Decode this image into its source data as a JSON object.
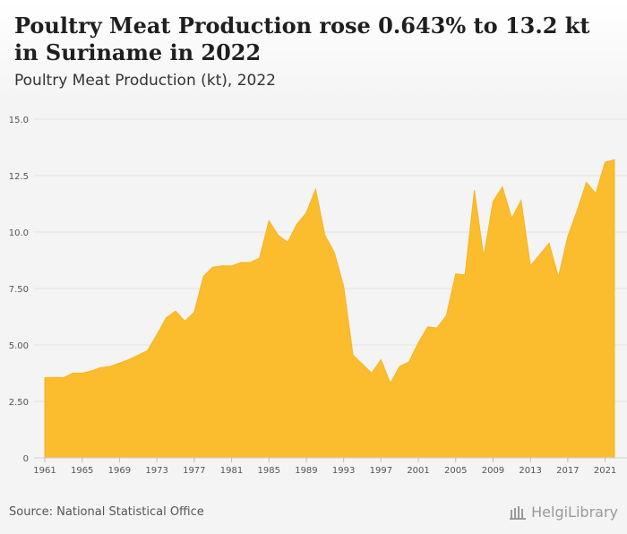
{
  "header": {
    "title": "Poultry Meat Production rose 0.643% to 13.2 kt in Suriname in 2022",
    "subtitle": "Poultry Meat Production (kt), 2022"
  },
  "footer": {
    "source": "Source: National Statistical Office",
    "brand": "HelgiLibrary"
  },
  "colors": {
    "area_fill": "#fbbd2e",
    "area_stroke": "#f5b51f",
    "grid": "#e2e2e2",
    "tick_text": "#555555",
    "background": "#f4f4f4"
  },
  "chart_data": {
    "type": "area",
    "title": "Poultry Meat Production rose 0.643% to 13.2 kt in Suriname in 2022",
    "subtitle": "Poultry Meat Production (kt), 2022",
    "xlabel": "",
    "ylabel": "",
    "xlim": [
      1961,
      2022
    ],
    "ylim": [
      0,
      15
    ],
    "grid": true,
    "legend": "none",
    "y_ticks": [
      "0",
      "2.50",
      "5.00",
      "7.50",
      "10.0",
      "12.5",
      "15.0"
    ],
    "y_tick_values": [
      0,
      2.5,
      5,
      7.5,
      10,
      12.5,
      15
    ],
    "x_ticks": [
      "1961",
      "1965",
      "1969",
      "1973",
      "1977",
      "1981",
      "1985",
      "1989",
      "1993",
      "1997",
      "2001",
      "2005",
      "2009",
      "2013",
      "2017",
      "2021"
    ],
    "x": [
      1961,
      1962,
      1963,
      1964,
      1965,
      1966,
      1967,
      1968,
      1969,
      1970,
      1971,
      1972,
      1973,
      1974,
      1975,
      1976,
      1977,
      1978,
      1979,
      1980,
      1981,
      1982,
      1983,
      1984,
      1985,
      1986,
      1987,
      1988,
      1989,
      1990,
      1991,
      1992,
      1993,
      1994,
      1995,
      1996,
      1997,
      1998,
      1999,
      2000,
      2001,
      2002,
      2003,
      2004,
      2005,
      2006,
      2007,
      2008,
      2009,
      2010,
      2011,
      2012,
      2013,
      2014,
      2015,
      2016,
      2017,
      2018,
      2019,
      2020,
      2021,
      2022
    ],
    "series": [
      {
        "values": [
          3.55,
          3.56,
          3.55,
          3.75,
          3.75,
          3.85,
          4.0,
          4.05,
          4.2,
          4.35,
          4.55,
          4.75,
          5.45,
          6.2,
          6.5,
          6.05,
          6.45,
          8.05,
          8.45,
          8.5,
          8.5,
          8.65,
          8.65,
          8.85,
          10.5,
          9.85,
          9.55,
          10.35,
          10.85,
          11.9,
          9.85,
          9.1,
          7.6,
          4.55,
          4.15,
          3.75,
          4.35,
          3.3,
          4.05,
          4.25,
          5.1,
          5.8,
          5.75,
          6.3,
          8.15,
          8.1,
          11.85,
          8.9,
          11.35,
          12.0,
          10.6,
          11.4,
          8.5,
          9.0,
          9.5,
          8.0,
          9.8,
          10.95,
          12.2,
          11.7,
          13.1,
          13.2
        ]
      }
    ]
  }
}
